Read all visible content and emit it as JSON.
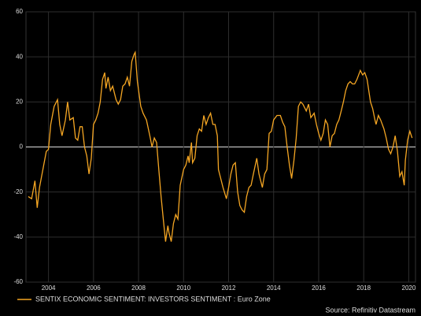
{
  "chart_data": {
    "type": "line",
    "series": [
      {
        "name": "SENTIX ECONOMIC SENTIMENT: INVESTORS SENTIMENT : Euro Zone",
        "color": "#f5a623",
        "x": [
          2003.1,
          2003.25,
          2003.4,
          2003.5,
          2003.6,
          2003.75,
          2003.9,
          2004.0,
          2004.1,
          2004.25,
          2004.4,
          2004.5,
          2004.6,
          2004.75,
          2004.85,
          2004.95,
          2005.1,
          2005.2,
          2005.3,
          2005.4,
          2005.5,
          2005.6,
          2005.7,
          2005.8,
          2005.9,
          2006.0,
          2006.1,
          2006.2,
          2006.3,
          2006.4,
          2006.5,
          2006.55,
          2006.65,
          2006.75,
          2006.85,
          2007.0,
          2007.1,
          2007.2,
          2007.3,
          2007.4,
          2007.5,
          2007.6,
          2007.7,
          2007.8,
          2007.85,
          2007.95,
          2008.1,
          2008.2,
          2008.35,
          2008.5,
          2008.6,
          2008.7,
          2008.8,
          2008.9,
          2009.0,
          2009.1,
          2009.2,
          2009.3,
          2009.35,
          2009.45,
          2009.55,
          2009.65,
          2009.75,
          2009.85,
          2010.0,
          2010.1,
          2010.2,
          2010.25,
          2010.35,
          2010.4,
          2010.5,
          2010.6,
          2010.7,
          2010.8,
          2010.9,
          2011.0,
          2011.1,
          2011.2,
          2011.3,
          2011.4,
          2011.5,
          2011.55,
          2011.65,
          2011.75,
          2011.9,
          2012.0,
          2012.1,
          2012.2,
          2012.3,
          2012.4,
          2012.5,
          2012.6,
          2012.7,
          2012.8,
          2012.9,
          2013.0,
          2013.1,
          2013.25,
          2013.35,
          2013.5,
          2013.6,
          2013.7,
          2013.8,
          2013.9,
          2014.0,
          2014.15,
          2014.3,
          2014.4,
          2014.5,
          2014.6,
          2014.7,
          2014.8,
          2014.9,
          2015.0,
          2015.1,
          2015.2,
          2015.3,
          2015.45,
          2015.55,
          2015.65,
          2015.8,
          2015.9,
          2016.0,
          2016.1,
          2016.2,
          2016.3,
          2016.4,
          2016.5,
          2016.6,
          2016.7,
          2016.8,
          2016.9,
          2017.0,
          2017.1,
          2017.2,
          2017.3,
          2017.4,
          2017.5,
          2017.6,
          2017.7,
          2017.85,
          2017.95,
          2018.05,
          2018.15,
          2018.3,
          2018.4,
          2018.5,
          2018.55,
          2018.65,
          2018.75,
          2018.9,
          2019.0,
          2019.1,
          2019.2,
          2019.3,
          2019.4,
          2019.5,
          2019.6,
          2019.7,
          2019.8,
          2019.85,
          2019.95,
          2020.05,
          2020.15
        ],
        "values": [
          -22,
          -23,
          -15,
          -27,
          -18,
          -10,
          -2,
          -1,
          10,
          18,
          21,
          10,
          5,
          12,
          20,
          12,
          13,
          4,
          3,
          9,
          9,
          0,
          -4,
          -12,
          -5,
          10,
          12,
          15,
          20,
          30,
          33,
          26,
          31,
          25,
          27,
          21,
          19,
          21,
          27,
          28,
          31,
          27,
          38,
          41,
          42,
          29,
          18,
          15,
          12,
          5,
          0,
          4,
          2,
          -10,
          -22,
          -32,
          -42,
          -35,
          -38,
          -42,
          -34,
          -30,
          -32,
          -17,
          -10,
          -8,
          -4,
          -7,
          2,
          -7,
          -5,
          5,
          8,
          7,
          14,
          10,
          13,
          15,
          10,
          10,
          5,
          -10,
          -14,
          -18,
          -23,
          -18,
          -12,
          -8,
          -7,
          -20,
          -26,
          -28,
          -29,
          -22,
          -18,
          -17,
          -12,
          -5,
          -12,
          -18,
          -12,
          -10,
          6,
          7,
          12,
          14,
          14,
          11,
          9,
          0,
          -8,
          -14,
          -6,
          4,
          18,
          20,
          19,
          16,
          19,
          13,
          15,
          10,
          6,
          3,
          6,
          12,
          10,
          0,
          5,
          6,
          10,
          12,
          16,
          20,
          25,
          28,
          29,
          28,
          28,
          30,
          34,
          32,
          33,
          30,
          20,
          17,
          12,
          10,
          14,
          12,
          8,
          4,
          -1,
          -3,
          0,
          5,
          -2,
          -13,
          -11,
          -17,
          -6,
          3,
          7,
          4
        ]
      }
    ],
    "xlim": [
      2003,
      2020.3
    ],
    "xticks": [
      2004,
      2006,
      2008,
      2010,
      2012,
      2014,
      2016,
      2018,
      2020
    ],
    "ylim": [
      -60,
      60
    ],
    "yticks": [
      -60,
      -40,
      -20,
      0,
      20,
      40,
      60
    ],
    "grid": true,
    "source": "Source: Refinitiv Datastream"
  }
}
